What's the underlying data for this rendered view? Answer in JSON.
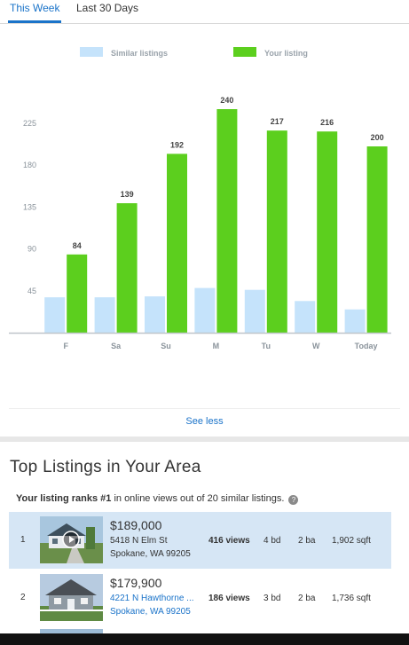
{
  "tabs": [
    {
      "label": "This Week",
      "active": true
    },
    {
      "label": "Last 30 Days",
      "active": false
    }
  ],
  "chart_data": {
    "type": "bar",
    "categories": [
      "F",
      "Sa",
      "Su",
      "M",
      "Tu",
      "W",
      "Today"
    ],
    "series": [
      {
        "name": "Similar listings",
        "color": "#c5e3fb",
        "values": [
          38,
          38,
          39,
          48,
          46,
          34,
          25
        ]
      },
      {
        "name": "Your listing",
        "color": "#5ccf1e",
        "values": [
          84,
          139,
          192,
          240,
          217,
          216,
          200
        ]
      }
    ],
    "data_labels": [
      "84",
      "139",
      "192",
      "240",
      "217",
      "216",
      "200"
    ],
    "y_ticks": [
      "45",
      "90",
      "135",
      "180",
      "225"
    ],
    "ylim": [
      0,
      240
    ],
    "legend_position": "top",
    "grid": false
  },
  "see_less": "See less",
  "top_listings": {
    "title": "Top Listings in Your Area",
    "rank_prefix": "Your listing ranks #1",
    "rank_suffix": " in online views out of 20 similar listings.",
    "help_icon_text": "?",
    "rows": [
      {
        "rank": "1",
        "price": "$189,000",
        "street": "5418 N Elm St",
        "city": "Spokane, WA 99205",
        "views": "416 views",
        "beds": "4 bd",
        "baths": "2 ba",
        "sqft": "1,902 sqft",
        "highlight": true,
        "thumb_icon": "video-play-icon"
      },
      {
        "rank": "2",
        "price": "$179,900",
        "street": "4221 N Hawthorne ...",
        "city": "Spokane, WA 99205",
        "views": "186 views",
        "beds": "3 bd",
        "baths": "2 ba",
        "sqft": "1,736 sqft",
        "highlight": false,
        "thumb_icon": "house-photo-icon"
      }
    ]
  },
  "colors": {
    "accent": "#1a73c9",
    "your_listing": "#5ccf1e",
    "similar": "#c5e3fb",
    "highlight_row": "#d6e6f5"
  }
}
